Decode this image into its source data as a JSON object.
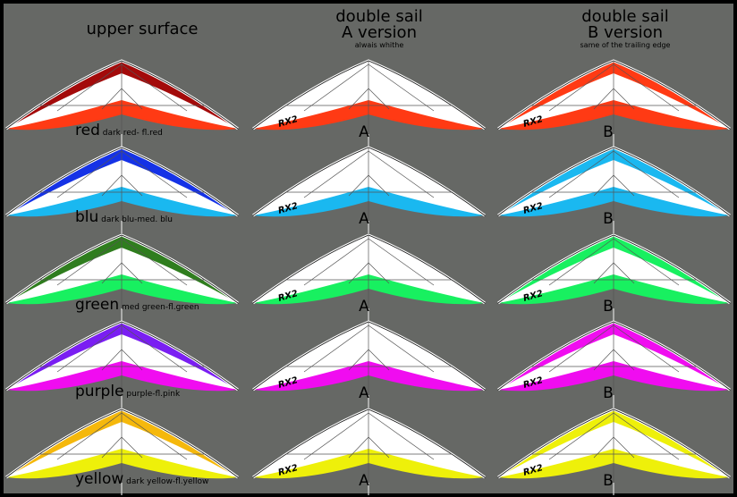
{
  "headers": {
    "upper": "upper surface",
    "a_title": "double sail",
    "a_version": "A version",
    "a_note": "alwais whithe",
    "b_title": "double sail",
    "b_version": "B version",
    "b_note": "same of the trailing edge"
  },
  "brand_mark": "RX2",
  "version_letters": {
    "a": "A",
    "b": "B"
  },
  "rows": [
    {
      "label": "red",
      "detail": "dark red- fl.red",
      "dark": "#a30a0a",
      "fluo": "#ff3a14"
    },
    {
      "label": "blu",
      "detail": "dark blu-med. blu",
      "dark": "#1532e6",
      "fluo": "#1ab8f0"
    },
    {
      "label": "green",
      "detail": "med green-fl.green",
      "dark": "#2f7d1e",
      "fluo": "#18f060"
    },
    {
      "label": "purple",
      "detail": "purple-fl.pink",
      "dark": "#7a1ef2",
      "fluo": "#f00cf0"
    },
    {
      "label": "yellow",
      "detail": "dark yellow-fl.yellow",
      "dark": "#f5b80c",
      "fluo": "#eef00a"
    }
  ]
}
